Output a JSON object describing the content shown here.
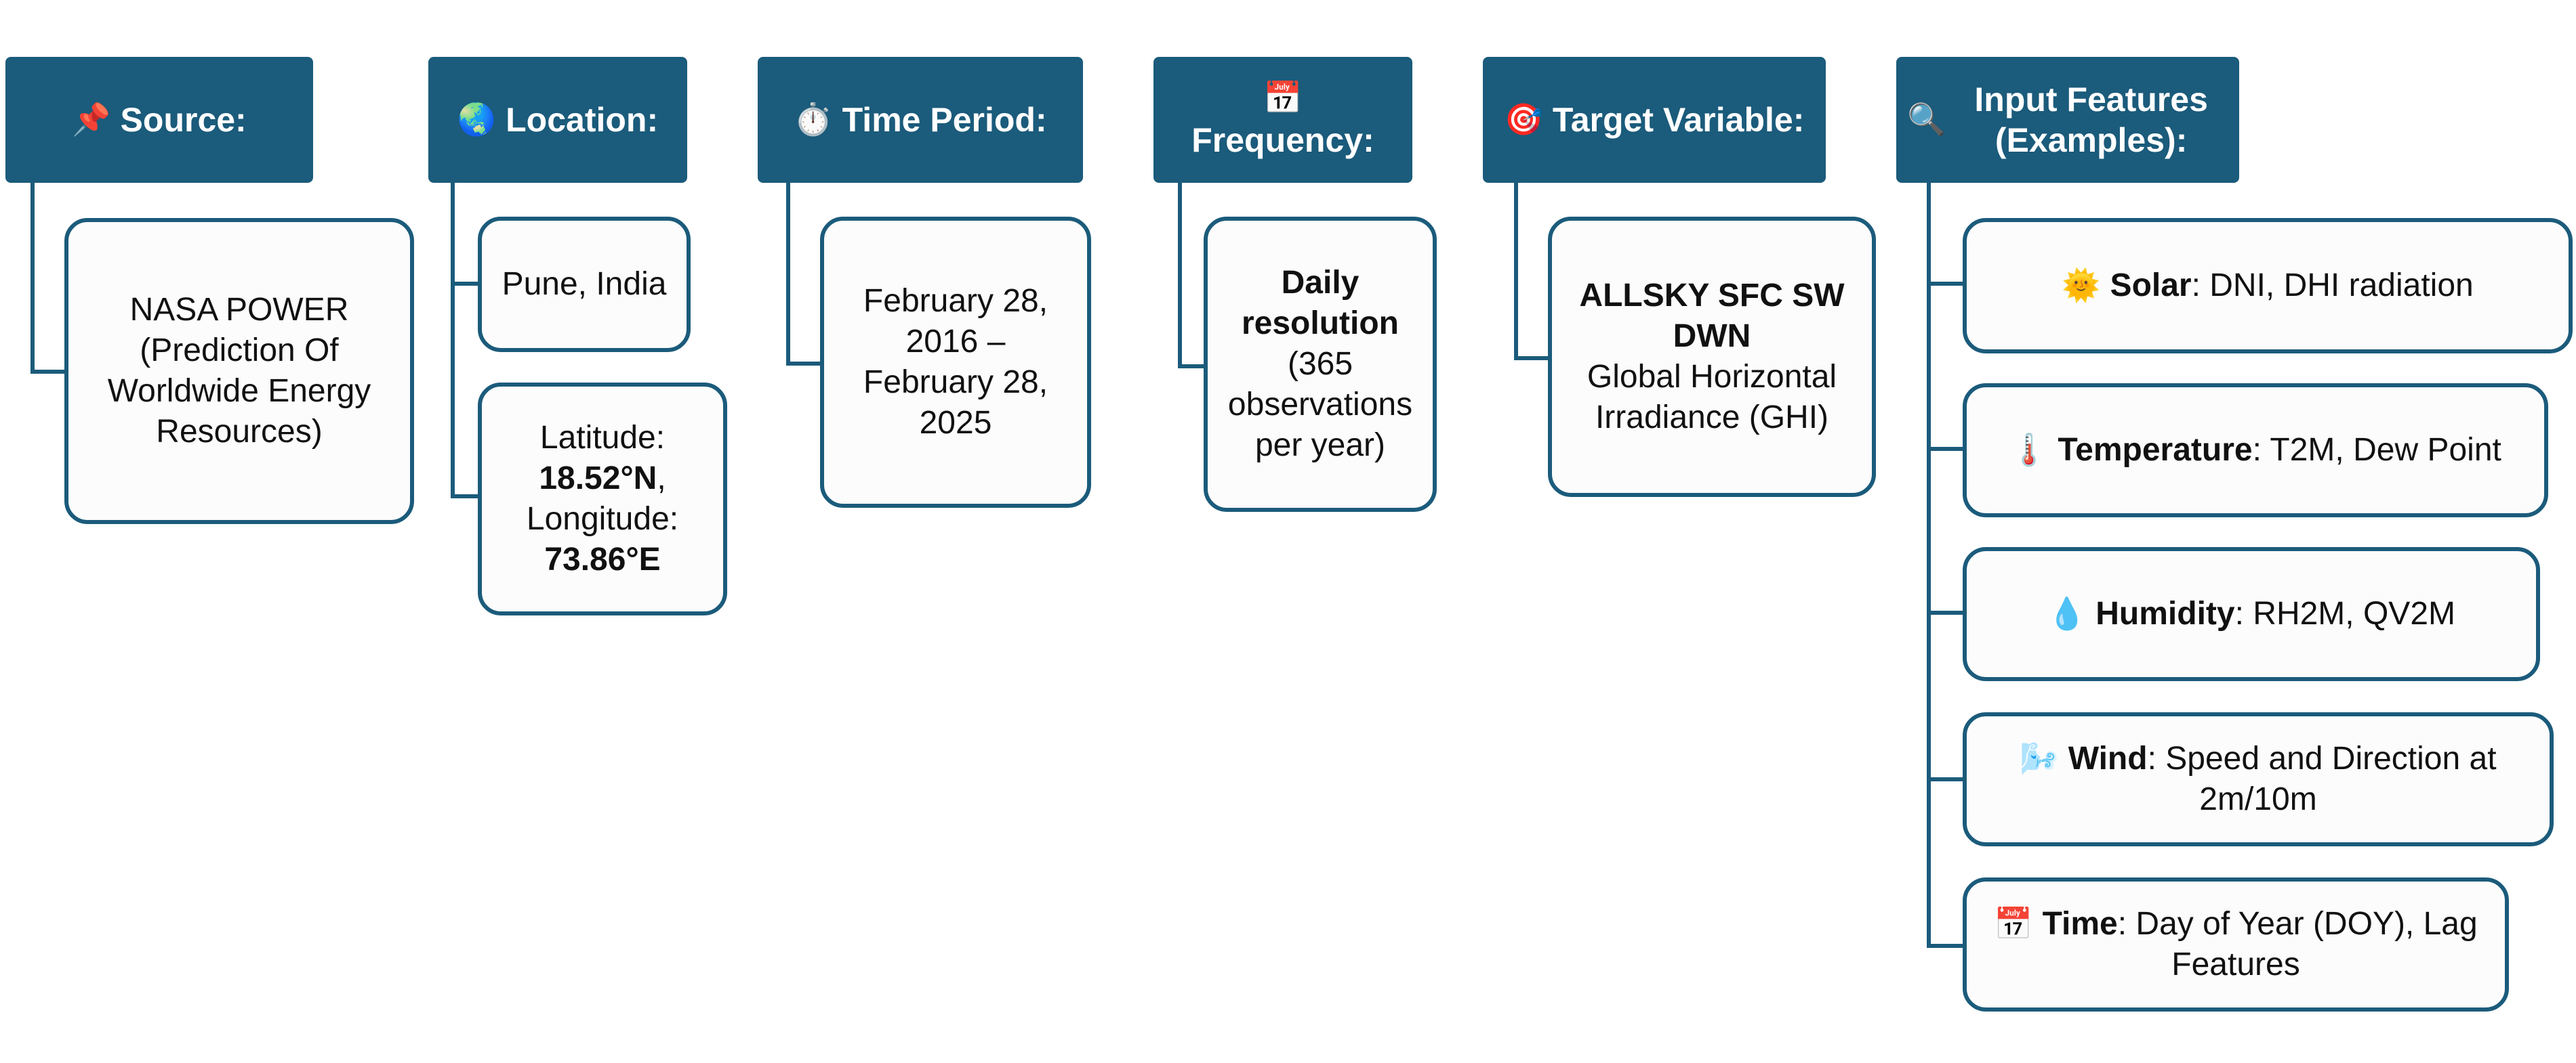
{
  "source": {
    "icon": "pushpin-icon",
    "header": "Source:",
    "text": "NASA POWER (Prediction Of Worldwide Energy Resources)"
  },
  "location": {
    "icon": "globe-icon",
    "header": "Location:",
    "place": "Pune, India",
    "latitude_label": "Latitude:",
    "latitude_value": "18.52°N",
    "longitude_label": "Longitude:",
    "longitude_value": "73.86°E"
  },
  "time_period": {
    "icon": "stopwatch-icon",
    "header": "Time Period:",
    "text": "February 28, 2016 – February 28, 2025"
  },
  "frequency": {
    "icon": "calendar-icon",
    "header": "Frequency:",
    "bold": "Daily resolution",
    "text": "(365 observations per year)"
  },
  "target": {
    "icon": "target-icon",
    "header": "Target Variable:",
    "bold": "ALLSKY SFC SW DWN",
    "text": "Global Horizontal Irradiance (GHI)"
  },
  "features": {
    "icon": "magnifier-icon",
    "header": "Input Features (Examples):",
    "items": [
      {
        "icon": "sun-icon",
        "name": "Solar",
        "text": ": DNI, DHI radiation"
      },
      {
        "icon": "thermometer-icon",
        "name": "Temperature",
        "text": ": T2M, Dew Point"
      },
      {
        "icon": "droplet-icon",
        "name": "Humidity",
        "text": ": RH2M, QV2M"
      },
      {
        "icon": "wind-icon",
        "name": "Wind",
        "text": ": Speed and Direction at 2m/10m"
      },
      {
        "icon": "calendar-icon",
        "name": "Time",
        "text": ": Day of Year (DOY), Lag Features"
      }
    ]
  },
  "colors": {
    "header_bg": "#1b5b7b",
    "border": "#1b5b7b",
    "box_bg": "#fcfcfc"
  }
}
